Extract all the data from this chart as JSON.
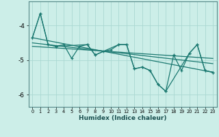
{
  "xlabel": "Humidex (Indice chaleur)",
  "bg_color": "#cceee8",
  "line_color": "#1a7870",
  "grid_color": "#aad8d2",
  "xlim": [
    -0.5,
    23.5
  ],
  "ylim": [
    -6.35,
    -3.3
  ],
  "yticks": [
    -6,
    -5,
    -4
  ],
  "xticks": [
    0,
    1,
    2,
    3,
    4,
    5,
    6,
    7,
    8,
    9,
    10,
    11,
    12,
    13,
    14,
    15,
    16,
    17,
    18,
    19,
    20,
    21,
    22,
    23
  ],
  "main_x": [
    0,
    1,
    2,
    3,
    4,
    5,
    6,
    7,
    8,
    9,
    10,
    11,
    12,
    13,
    14,
    15,
    16,
    17,
    18,
    19,
    20,
    21,
    22,
    23
  ],
  "main_y": [
    -4.35,
    -3.65,
    -4.55,
    -4.6,
    -4.55,
    -4.95,
    -4.6,
    -4.55,
    -4.85,
    -4.75,
    -4.7,
    -4.55,
    -4.55,
    -5.25,
    -5.2,
    -5.3,
    -5.7,
    -5.9,
    -4.85,
    -5.3,
    -4.8,
    -4.55,
    -5.3,
    -5.35
  ],
  "line2_x": [
    0,
    1,
    2,
    3,
    7,
    8,
    11,
    12,
    13,
    14,
    15,
    16,
    17,
    20,
    21,
    22,
    23
  ],
  "line2_y": [
    -4.35,
    -3.65,
    -4.55,
    -4.6,
    -4.55,
    -4.85,
    -4.55,
    -4.55,
    -5.25,
    -5.2,
    -5.3,
    -5.7,
    -5.9,
    -4.8,
    -4.55,
    -5.3,
    -5.35
  ],
  "trend1_x": [
    0,
    23
  ],
  "trend1_y": [
    -4.35,
    -5.35
  ],
  "trend2_x": [
    0,
    23
  ],
  "trend2_y": [
    -4.5,
    -5.1
  ],
  "trend3_x": [
    0,
    23
  ],
  "trend3_y": [
    -4.6,
    -4.95
  ]
}
